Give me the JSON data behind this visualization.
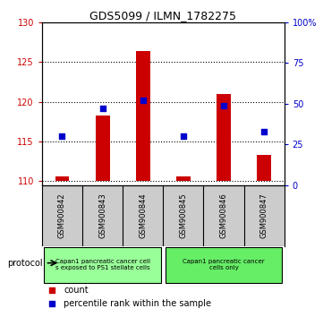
{
  "title": "GDS5099 / ILMN_1782275",
  "samples": [
    "GSM900842",
    "GSM900843",
    "GSM900844",
    "GSM900845",
    "GSM900846",
    "GSM900847"
  ],
  "counts": [
    110.6,
    118.2,
    126.4,
    110.6,
    121.0,
    113.3
  ],
  "percentile_ranks": [
    30,
    47,
    52,
    30,
    49,
    33
  ],
  "ylim_left": [
    109.5,
    130
  ],
  "ylim_right": [
    0,
    100
  ],
  "yticks_left": [
    110,
    115,
    120,
    125,
    130
  ],
  "yticks_right": [
    0,
    25,
    50,
    75,
    100
  ],
  "ytick_labels_right": [
    "0",
    "25",
    "50",
    "75",
    "100%"
  ],
  "bar_color": "#cc0000",
  "dot_color": "#0000cc",
  "bar_bottom": 110,
  "group0_color": "#99ff99",
  "group1_color": "#66ee66",
  "group0_label_line1": "Capan1 pancreatic cancer cell",
  "group0_label_line2": "s exposed to PS1 stellate cells",
  "group1_label_line1": "Capan1 pancreatic cancer",
  "group1_label_line2": "cells only",
  "protocol_label": "protocol",
  "legend_count_label": "count",
  "legend_pct_label": "percentile rank within the sample",
  "sample_bg": "#cccccc",
  "bg_color": "#ffffff"
}
